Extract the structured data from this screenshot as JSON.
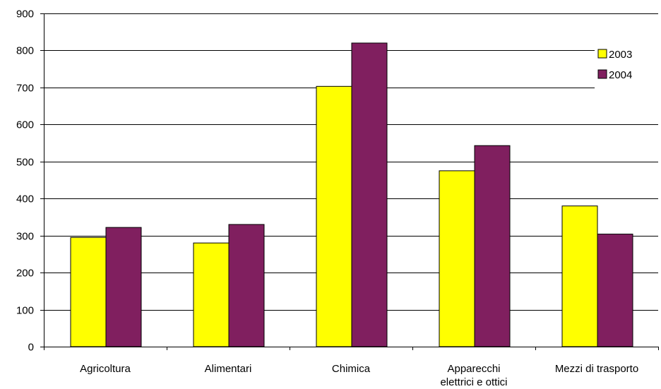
{
  "chart_data": {
    "type": "bar",
    "categories": [
      [
        "Agricoltura"
      ],
      [
        "Alimentari"
      ],
      [
        "Chimica"
      ],
      [
        "Apparecchi",
        "elettrici e ottici"
      ],
      [
        "Mezzi di trasporto"
      ]
    ],
    "series": [
      {
        "name": "2003",
        "color": "#FFFF00",
        "values": [
          295,
          280,
          703,
          475,
          380
        ]
      },
      {
        "name": "2004",
        "color": "#801F5F",
        "values": [
          322,
          330,
          820,
          543,
          304
        ]
      }
    ],
    "yticks": [
      "0",
      "100",
      "200",
      "300",
      "400",
      "500",
      "600",
      "700",
      "800",
      "900"
    ],
    "ylim": [
      0,
      900
    ],
    "grid": true,
    "legend": "top-right"
  }
}
